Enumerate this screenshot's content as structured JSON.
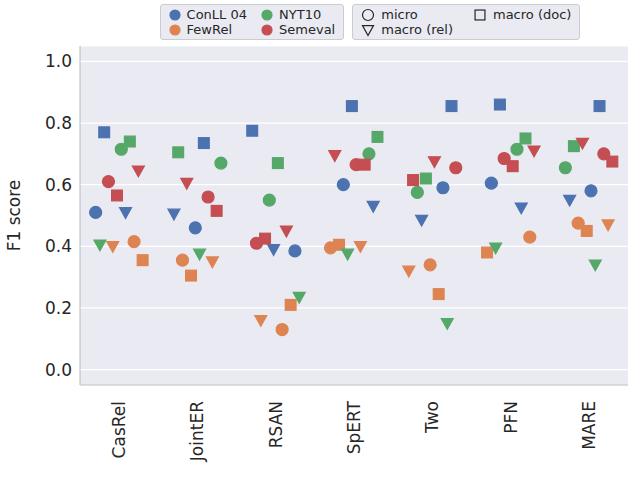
{
  "chart_data": {
    "type": "scatter",
    "y_label": "F1 score",
    "categories": [
      "CasRel",
      "JointER",
      "RSAN",
      "SpERT",
      "Two",
      "PFN",
      "MARE"
    ],
    "ylim": [
      -0.05,
      1.05
    ],
    "yticks": [
      {
        "value": 0,
        "label": "0.0"
      },
      0.2,
      0.4,
      0.6,
      0.8,
      {
        "value": 1,
        "label": "1.0"
      }
    ],
    "grid": true,
    "legend": "top",
    "series": [
      {
        "dataset": "ConLL 04",
        "metric": "micro",
        "color": "#4c72b0",
        "marker": "circle",
        "values": [
          0.51,
          0.46,
          0.385,
          0.6,
          0.59,
          0.605,
          0.58
        ]
      },
      {
        "dataset": "ConLL 04",
        "metric": "macro (rel)",
        "color": "#4c72b0",
        "marker": "triangle",
        "values": [
          0.51,
          0.505,
          0.39,
          0.53,
          0.485,
          0.525,
          0.55
        ]
      },
      {
        "dataset": "ConLL 04",
        "metric": "macro (doc)",
        "color": "#4c72b0",
        "marker": "square",
        "values": [
          0.77,
          0.735,
          0.775,
          0.855,
          0.855,
          0.86,
          0.855
        ]
      },
      {
        "dataset": "FewRel",
        "metric": "micro",
        "color": "#dd8452",
        "marker": "circle",
        "values": [
          0.415,
          0.355,
          0.13,
          0.395,
          0.34,
          0.43,
          0.475
        ]
      },
      {
        "dataset": "FewRel",
        "metric": "macro (rel)",
        "color": "#dd8452",
        "marker": "triangle",
        "values": [
          0.4,
          0.35,
          0.16,
          0.4,
          0.32,
          null,
          0.47
        ]
      },
      {
        "dataset": "FewRel",
        "metric": "macro (doc)",
        "color": "#dd8452",
        "marker": "square",
        "values": [
          0.355,
          0.305,
          0.21,
          0.405,
          0.245,
          0.38,
          0.45
        ]
      },
      {
        "dataset": "NYT10",
        "metric": "micro",
        "color": "#55a868",
        "marker": "circle",
        "values": [
          0.715,
          0.67,
          0.55,
          0.7,
          0.575,
          0.715,
          0.655
        ]
      },
      {
        "dataset": "NYT10",
        "metric": "macro (rel)",
        "color": "#55a868",
        "marker": "triangle",
        "values": [
          0.405,
          0.375,
          0.235,
          0.375,
          0.15,
          0.395,
          0.34
        ]
      },
      {
        "dataset": "NYT10",
        "metric": "macro (doc)",
        "color": "#55a868",
        "marker": "square",
        "values": [
          0.74,
          0.705,
          0.67,
          0.755,
          0.62,
          0.75,
          0.725
        ]
      },
      {
        "dataset": "Semeval",
        "metric": "micro",
        "color": "#c44e52",
        "marker": "circle",
        "values": [
          0.61,
          0.56,
          0.41,
          0.665,
          0.655,
          0.685,
          0.7
        ]
      },
      {
        "dataset": "Semeval",
        "metric": "macro (rel)",
        "color": "#c44e52",
        "marker": "triangle",
        "values": [
          0.645,
          0.605,
          0.45,
          0.695,
          0.675,
          0.71,
          0.735
        ]
      },
      {
        "dataset": "Semeval",
        "metric": "macro (doc)",
        "color": "#c44e52",
        "marker": "square",
        "values": [
          0.565,
          0.515,
          0.425,
          0.665,
          0.615,
          0.66,
          0.675
        ]
      }
    ]
  }
}
